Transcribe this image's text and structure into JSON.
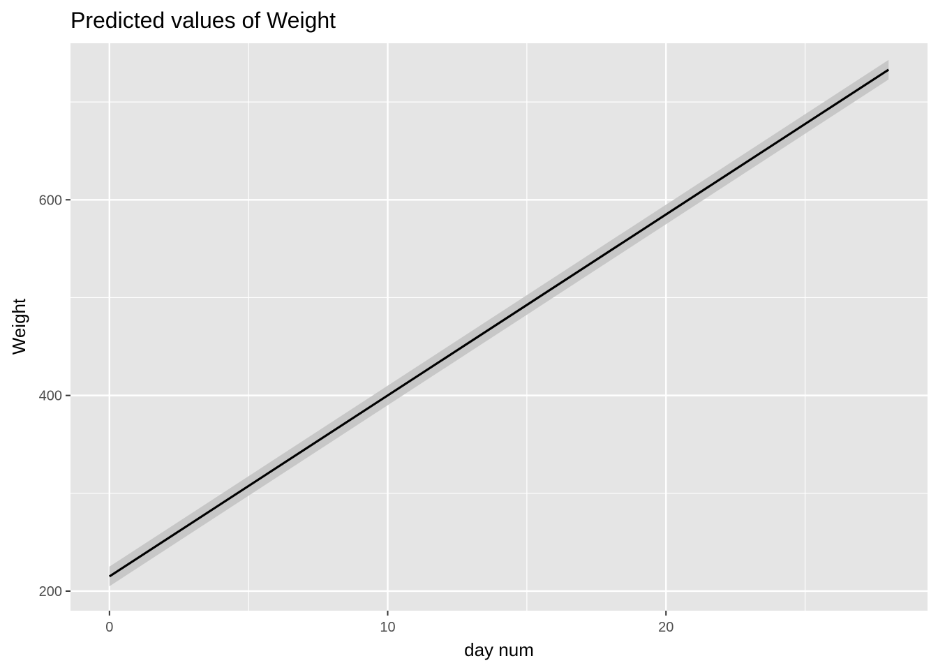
{
  "chart_data": {
    "type": "line",
    "title": "Predicted values of Weight",
    "xlabel": "day num",
    "ylabel": "Weight",
    "xlim": [
      -1.4,
      29.4
    ],
    "ylim": [
      180,
      760
    ],
    "x_ticks": [
      0,
      10,
      20
    ],
    "x_tick_labels": [
      "0",
      "10",
      "20"
    ],
    "x_minor_ticks": [
      5,
      15,
      25
    ],
    "y_ticks": [
      200,
      400,
      600
    ],
    "y_tick_labels": [
      "200",
      "400",
      "600"
    ],
    "y_minor_ticks": [
      300,
      500,
      700
    ],
    "grid": true,
    "legend": "none",
    "series": [
      {
        "x": [
          0,
          28
        ],
        "y": [
          215,
          733
        ],
        "ci_lower": [
          205,
          723
        ],
        "ci_upper": [
          225,
          743
        ]
      }
    ],
    "colors": {
      "panel": "#e5e5e5",
      "grid": "#ffffff",
      "line": "#000000",
      "ribbon": "#c2c2c2",
      "tick_text": "#4d4d4d",
      "tick_mark": "#333333"
    }
  }
}
